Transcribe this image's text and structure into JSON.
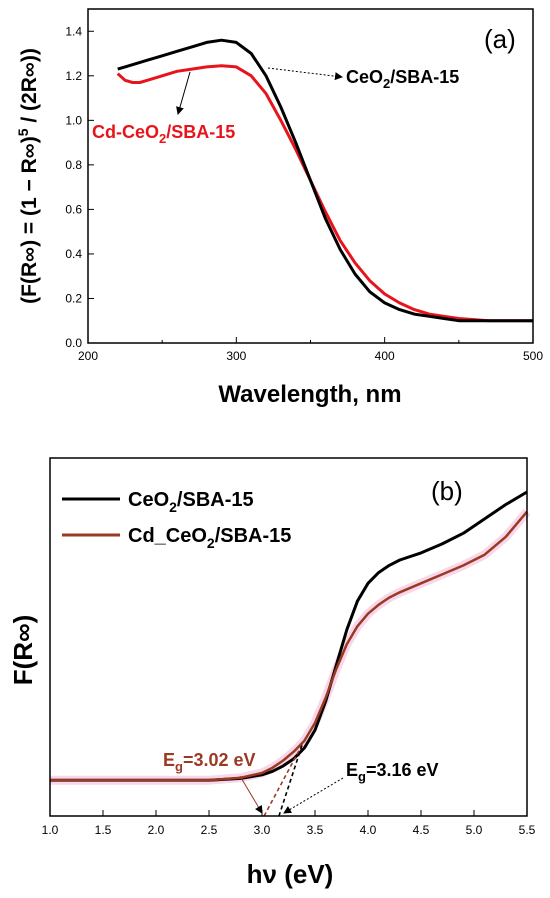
{
  "chart_data": [
    {
      "panel": "(a)",
      "type": "line",
      "xlabel": "Wavelength, nm",
      "ylabel_prefix": "(F(R∞) = (1 − R∞)",
      "ylabel_sup": "5",
      "ylabel_suffix": " / (2R∞))",
      "xlim": [
        200,
        500
      ],
      "ylim": [
        0.0,
        1.5
      ],
      "x_ticks": [
        200,
        300,
        400,
        500
      ],
      "y_ticks": [
        0.0,
        0.2,
        0.4,
        0.6,
        0.8,
        1.0,
        1.2,
        1.4
      ],
      "x_tick_labels": [
        "200",
        "300",
        "400",
        "500"
      ],
      "y_tick_labels": [
        "0.0",
        "0.2",
        "0.4",
        "0.6",
        "0.8",
        "1.0",
        "1.2",
        "1.4"
      ],
      "grid": false,
      "series": [
        {
          "name_main": "CeO",
          "name_sub": "2",
          "name_rest": "/SBA-15",
          "color": "#000000",
          "x": [
            220,
            230,
            240,
            250,
            260,
            270,
            280,
            290,
            300,
            310,
            320,
            330,
            340,
            350,
            360,
            370,
            380,
            390,
            400,
            410,
            420,
            430,
            440,
            450,
            460,
            470,
            480,
            490,
            500
          ],
          "y": [
            1.23,
            1.25,
            1.27,
            1.29,
            1.31,
            1.33,
            1.35,
            1.36,
            1.35,
            1.3,
            1.2,
            1.06,
            0.9,
            0.73,
            0.56,
            0.42,
            0.31,
            0.23,
            0.18,
            0.15,
            0.13,
            0.12,
            0.11,
            0.1,
            0.1,
            0.1,
            0.1,
            0.1,
            0.1
          ]
        },
        {
          "name_main": "Cd-CeO",
          "name_sub": "2",
          "name_rest": "/SBA-15",
          "color": "#e8141c",
          "x": [
            220,
            225,
            230,
            235,
            240,
            250,
            260,
            270,
            280,
            290,
            300,
            310,
            320,
            330,
            340,
            350,
            360,
            370,
            380,
            390,
            400,
            410,
            420,
            430,
            440,
            450,
            460,
            470,
            480,
            490,
            500
          ],
          "y": [
            1.21,
            1.18,
            1.17,
            1.17,
            1.18,
            1.2,
            1.22,
            1.23,
            1.24,
            1.245,
            1.24,
            1.2,
            1.12,
            1.0,
            0.87,
            0.73,
            0.59,
            0.46,
            0.36,
            0.28,
            0.22,
            0.18,
            0.15,
            0.13,
            0.12,
            0.11,
            0.105,
            0.1,
            0.1,
            0.1,
            0.1
          ]
        }
      ]
    },
    {
      "panel": "(b)",
      "type": "line",
      "xlabel": "hν (eV)",
      "ylabel": "F(R∞)",
      "xlim": [
        1.0,
        5.5
      ],
      "ylim": [
        0.0,
        1.0
      ],
      "x_ticks": [
        1.0,
        1.5,
        2.0,
        2.5,
        3.0,
        3.5,
        4.0,
        4.5,
        5.0,
        5.5
      ],
      "x_tick_labels": [
        "1.0",
        "1.5",
        "2.0",
        "2.5",
        "3.0",
        "3.5",
        "4.0",
        "4.5",
        "5.0",
        "5.5"
      ],
      "y_ticks_labeled": false,
      "grid": false,
      "legend": "top-left",
      "series": [
        {
          "name_main": "CeO",
          "name_sub": "2",
          "name_rest": "/SBA-15",
          "color": "#000000",
          "x": [
            1.0,
            2.5,
            2.8,
            3.0,
            3.1,
            3.2,
            3.3,
            3.4,
            3.5,
            3.6,
            3.7,
            3.8,
            3.9,
            4.0,
            4.1,
            4.2,
            4.3,
            4.5,
            4.7,
            4.9,
            5.1,
            5.3,
            5.5
          ],
          "y": [
            0.1,
            0.1,
            0.105,
            0.115,
            0.125,
            0.14,
            0.16,
            0.19,
            0.24,
            0.32,
            0.42,
            0.52,
            0.6,
            0.65,
            0.68,
            0.7,
            0.715,
            0.735,
            0.76,
            0.79,
            0.83,
            0.87,
            0.905
          ]
        },
        {
          "name_main": "Cd_CeO",
          "name_sub": "2",
          "name_rest": "/SBA-15",
          "color": "#9b3a24",
          "x": [
            1.0,
            2.5,
            2.8,
            3.0,
            3.1,
            3.2,
            3.3,
            3.4,
            3.5,
            3.6,
            3.7,
            3.8,
            3.9,
            4.0,
            4.1,
            4.2,
            4.3,
            4.5,
            4.7,
            4.9,
            5.1,
            5.3,
            5.5
          ],
          "y": [
            0.1,
            0.1,
            0.107,
            0.12,
            0.135,
            0.155,
            0.18,
            0.21,
            0.26,
            0.33,
            0.41,
            0.48,
            0.53,
            0.565,
            0.59,
            0.61,
            0.625,
            0.65,
            0.675,
            0.7,
            0.73,
            0.78,
            0.85
          ]
        }
      ],
      "fits": [
        {
          "color": "#9b3a24",
          "x": [
            3.02,
            3.38
          ],
          "y": [
            0.0,
            0.2
          ]
        },
        {
          "color": "#000000",
          "x": [
            3.16,
            3.38
          ],
          "y": [
            0.0,
            0.2
          ]
        }
      ],
      "annotations": [
        {
          "text_main": "E",
          "text_sub": "g",
          "text_rest": "=3.02 eV",
          "color": "#9b3a24"
        },
        {
          "text_main": "E",
          "text_sub": "g",
          "text_rest": "=3.16 eV",
          "color": "#000000"
        }
      ]
    }
  ]
}
